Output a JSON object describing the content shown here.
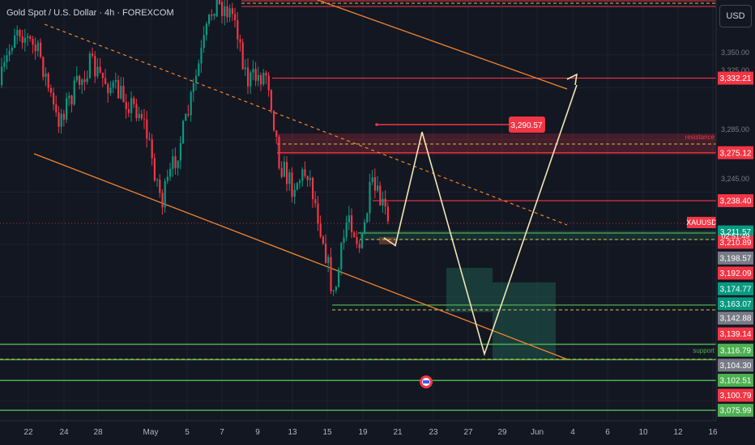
{
  "header": {
    "title": "Gold Spot / U.S. Dollar · 4h · FOREXCOM",
    "currency_button": "USD"
  },
  "colors": {
    "background": "#131722",
    "grid": "#1e222d",
    "up_candle": "#089981",
    "down_candle": "#f23645",
    "red_line": "#f23645",
    "green_line": "#4caf50",
    "yellow_dash": "#c9c44a",
    "orange": "#f0852d",
    "projection": "#f0e6b4",
    "teal_box": "#1f5a4e"
  },
  "chart_data": {
    "type": "candlestick",
    "symbol": "XAUUSD",
    "timeframe": "4h",
    "current_price": "3,210.89",
    "countdown": "02:51:49",
    "x_tick_labels": [
      "22",
      "24",
      "28",
      "May",
      "5",
      "7",
      "9",
      "13",
      "15",
      "19",
      "21",
      "23",
      "27",
      "29",
      "Jun",
      "4",
      "6",
      "10",
      "12",
      "16"
    ],
    "y_tick_labels": [
      "3,350.00",
      "3,325.00",
      "3,285.00",
      "3,245.00"
    ],
    "price_tags": [
      {
        "label": "3,332.21",
        "price": 3332.21,
        "color": "#f23645"
      },
      {
        "label": "3,275.12",
        "price": 3275.12,
        "color": "#f23645"
      },
      {
        "label": "3,238.40",
        "price": 3238.4,
        "color": "#f23645"
      },
      {
        "label": "3,211.57",
        "price": 3214.5,
        "color": "#089981"
      },
      {
        "label": "3,210.89",
        "price": 3206.6,
        "color": "#f23645"
      },
      {
        "label": "3,198.57",
        "price": 3194.5,
        "color": "#787b86"
      },
      {
        "label": "3,192.09",
        "price": 3183.0,
        "color": "#f23645"
      },
      {
        "label": "3,174.77",
        "price": 3171.0,
        "color": "#089981"
      },
      {
        "label": "3,163.07",
        "price": 3159.5,
        "color": "#089981"
      },
      {
        "label": "3,142.88",
        "price": 3148.5,
        "color": "#787b86"
      },
      {
        "label": "3,139.14",
        "price": 3136.5,
        "color": "#f23645"
      },
      {
        "label": "3,116.79",
        "price": 3124.0,
        "color": "#4caf50"
      },
      {
        "label": "3,104.30",
        "price": 3112.5,
        "color": "#787b86"
      },
      {
        "label": "3,102.51",
        "price": 3101.0,
        "color": "#4caf50"
      },
      {
        "label": "3,100.79",
        "price": 3089.5,
        "color": "#f23645"
      },
      {
        "label": "3,075.99",
        "price": 3078.0,
        "color": "#4caf50"
      }
    ],
    "symbol_tag": "XAUUSD",
    "annotations": {
      "target_label": "3,290.57",
      "resistance": "resistance",
      "support": "support"
    },
    "levels": {
      "red_top": 3332.21,
      "red_resistance": 3275.12,
      "red_mid": 3238.4,
      "green_lines": [
        3128.5,
        3116.79,
        3100.79,
        3078.0
      ],
      "yellow_dashed": [
        3385.0,
        3278.0,
        3201.0,
        3149.5,
        3116.79
      ]
    },
    "projection_path_prices": [
      3210.0,
      3204.0,
      3291.0,
      3121.0,
      3327.0
    ],
    "ylim": [
      3070.0,
      3392.0
    ]
  }
}
